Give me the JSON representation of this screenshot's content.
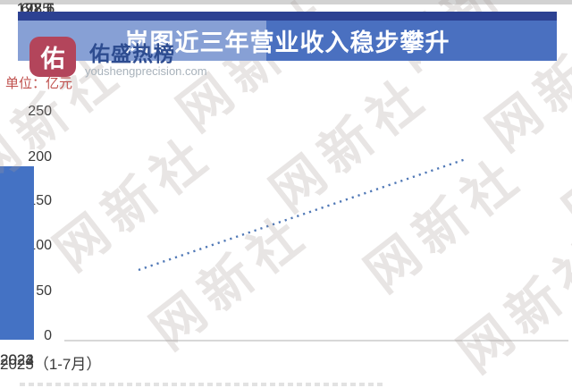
{
  "page": {
    "type": "news-infographic-bar-chart"
  },
  "header": {
    "title": "岚图近三年营业收入稳步攀升"
  },
  "branding": {
    "logo_char": "佑",
    "logo_color": "#b3455b",
    "brand_name": "佑盛热榜",
    "brand_domain": "youshengprecision.com"
  },
  "site_watermark": {
    "tile_text": "网新社"
  },
  "unit_label": "单位：亿元",
  "chart_data": {
    "type": "bar",
    "title": "岚图近三年营业收入稳步攀升",
    "unit": "亿元",
    "categories": [
      "2022",
      "2023",
      "2024",
      "2025（1-7月）"
    ],
    "values": [
      60.5,
      127.5,
      193.6,
      178.1
    ],
    "data_labels": [
      "60.5",
      "127.5",
      "193.6",
      "178.1"
    ],
    "y_ticks": [
      "250",
      "200",
      "150",
      "100",
      "50",
      "0"
    ],
    "ylim": [
      0,
      250
    ],
    "grid": false,
    "legend": false,
    "xlabel": "",
    "ylabel": "亿元",
    "bar_color": "#4472c4",
    "banner_color": "#4a70c0",
    "trendline": {
      "type": "linear",
      "style": "dotted",
      "color": "#5078b6",
      "description": "rising dotted trend line from first bar top toward last data label"
    }
  }
}
